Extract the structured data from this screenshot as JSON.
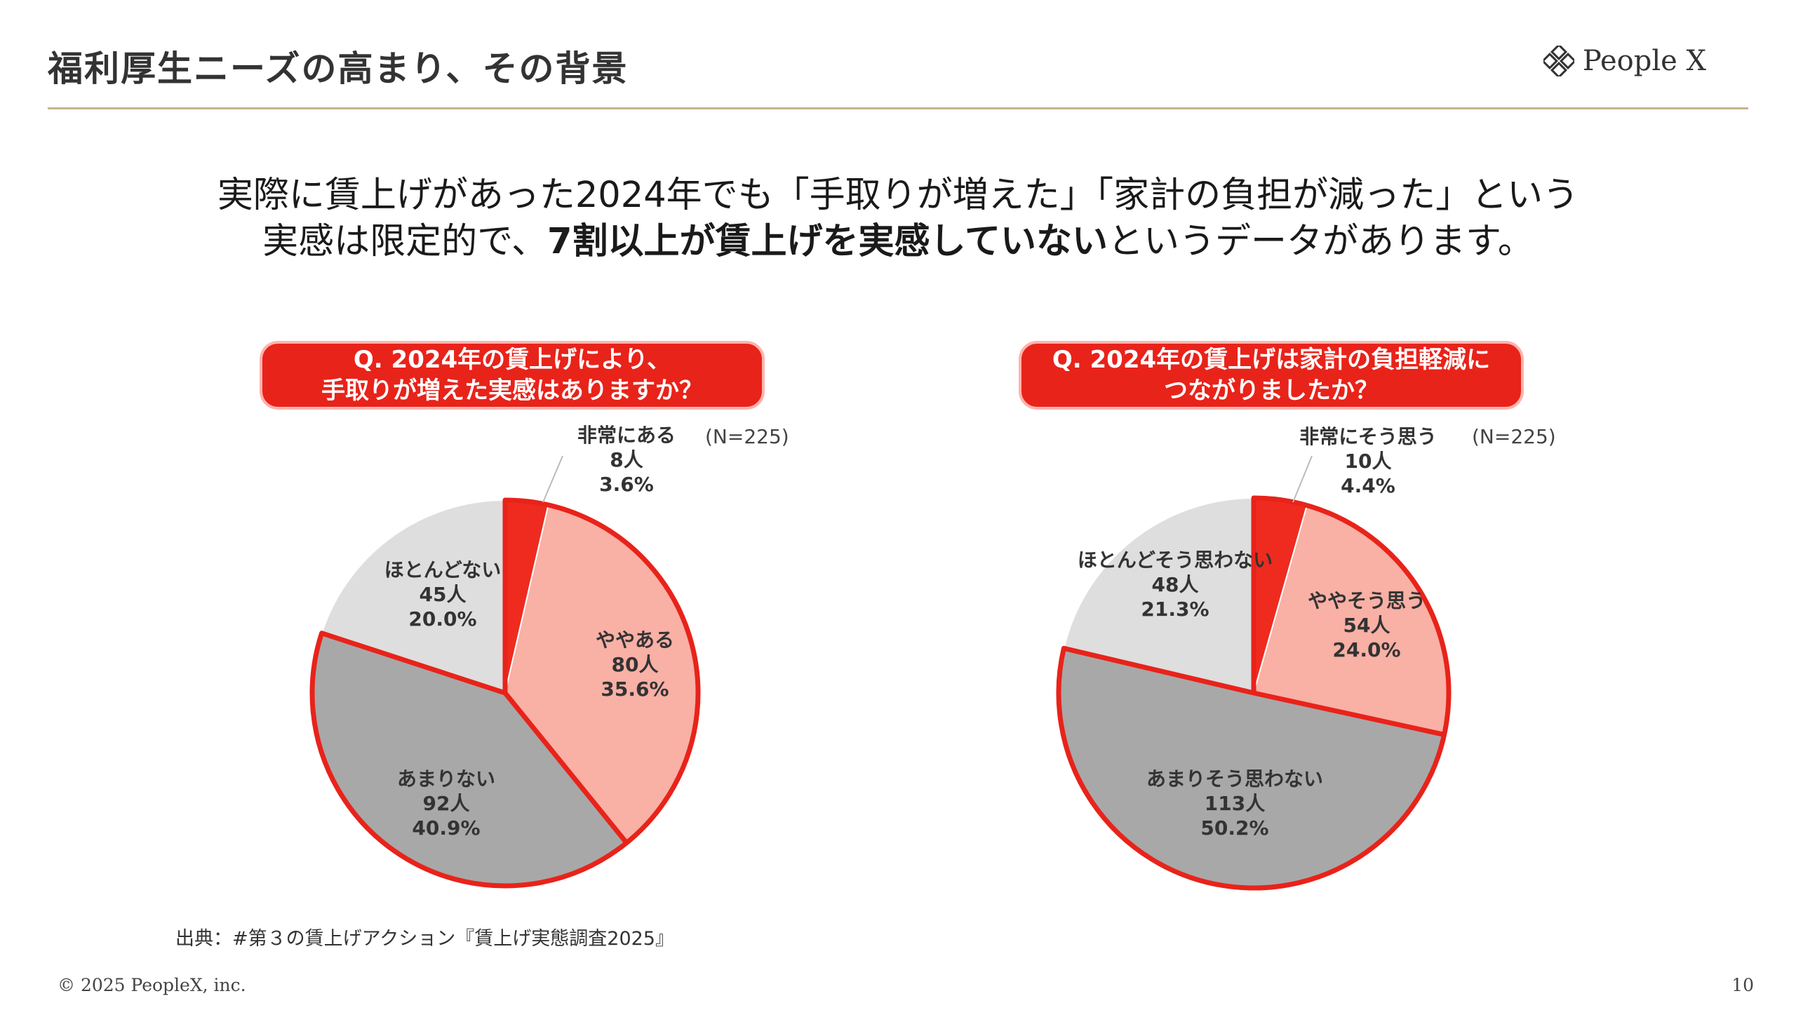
{
  "header": {
    "title": "福利厚生ニーズの高まり、その背景",
    "brand": "People X"
  },
  "lead": {
    "line1": "実際に賃上げがあった2024年でも「手取りが増えた」「家計の負担が減った」という",
    "line2_pre": "実感は限定的で、",
    "line2_bold": "7割以上が賃上げを実感していない",
    "line2_post": "というデータがあります。"
  },
  "source": "出典：#第３の賃上げアクション『賃上げ実態調査2025』",
  "footer": {
    "copyright": "© 2025 PeopleX, inc.",
    "page": "10"
  },
  "colors": {
    "accent_red": "#e8231a",
    "rule_gold": "#c8b48a",
    "slice_strong": "#ef2b1f",
    "slice_light": "#f9b0a5",
    "slice_dark": "#a8a8a8",
    "slice_pale": "#dedede"
  },
  "chart_data": [
    {
      "type": "pie",
      "question_line1": "Q. 2024年の賃上げにより、",
      "question_line2": "手取りが増えた実感はありますか？",
      "n_label": "(N=225)",
      "slices": [
        {
          "label": "非常にある",
          "count": "8人",
          "percent": 3.6,
          "percent_label": "3.6%"
        },
        {
          "label": "ややある",
          "count": "80人",
          "percent": 35.6,
          "percent_label": "35.6%"
        },
        {
          "label": "あまりない",
          "count": "92人",
          "percent": 40.9,
          "percent_label": "40.9%"
        },
        {
          "label": "ほとんどない",
          "count": "45人",
          "percent": 20.0,
          "percent_label": "20.0%"
        }
      ]
    },
    {
      "type": "pie",
      "question_line1": "Q. 2024年の賃上げは家計の負担軽減に",
      "question_line2": "つながりましたか？",
      "n_label": "(N=225)",
      "slices": [
        {
          "label": "非常にそう思う",
          "count": "10人",
          "percent": 4.4,
          "percent_label": "4.4%"
        },
        {
          "label": "ややそう思う",
          "count": "54人",
          "percent": 24.0,
          "percent_label": "24.0%"
        },
        {
          "label": "あまりそう思わない",
          "count": "113人",
          "percent": 50.2,
          "percent_label": "50.2%"
        },
        {
          "label": "ほとんどそう思わない",
          "count": "48人",
          "percent": 21.3,
          "percent_label": "21.3%"
        }
      ]
    }
  ]
}
